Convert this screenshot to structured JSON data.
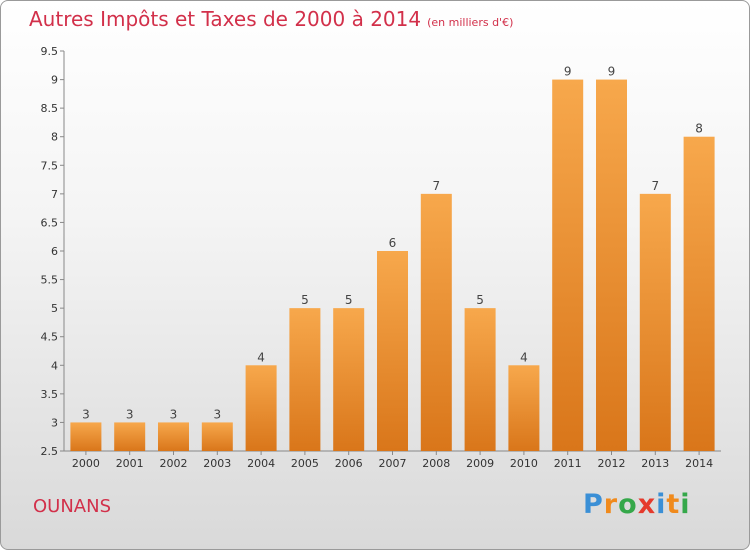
{
  "title": "Autres Impôts et Taxes de 2000 à 2014",
  "subtitle": "(en milliers d'€)",
  "commune": "OUNANS",
  "logo": {
    "letters": [
      "P",
      "r",
      "o",
      "x",
      "i",
      "t",
      "i"
    ],
    "colors": [
      "#3a8fd6",
      "#f08a1c",
      "#35a84a",
      "#e53a2c",
      "#3a8fd6",
      "#f08a1c",
      "#35a84a"
    ]
  },
  "colors": {
    "title": "#d2304a",
    "bar_light": "#f7a84c",
    "bar_dark": "#d97a1e"
  },
  "chart_data": {
    "type": "bar",
    "categories": [
      "2000",
      "2001",
      "2002",
      "2003",
      "2004",
      "2005",
      "2006",
      "2007",
      "2008",
      "2009",
      "2010",
      "2011",
      "2012",
      "2013",
      "2014"
    ],
    "values": [
      3,
      3,
      3,
      3,
      4,
      5,
      5,
      6,
      7,
      5,
      4,
      9,
      9,
      7,
      8
    ],
    "title": "Autres Impôts et Taxes de 2000 à 2014",
    "ylim": [
      2.5,
      9.5
    ],
    "yticks": [
      "2.5",
      "3",
      "3.5",
      "4",
      "4.5",
      "5",
      "5.5",
      "6",
      "6.5",
      "7",
      "7.5",
      "8",
      "8.5",
      "9",
      "9.5"
    ],
    "grid": false,
    "legend": "none"
  }
}
